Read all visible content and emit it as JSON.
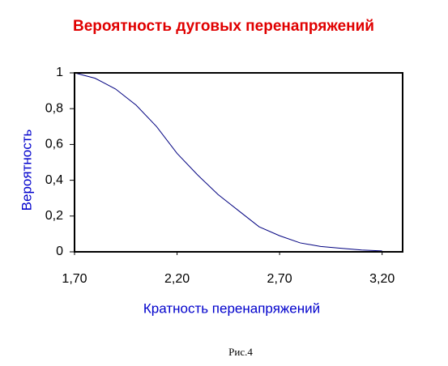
{
  "chart_data": {
    "type": "line",
    "title": "Вероятность дуговых перенапряжений",
    "x_label": "Кратность перенапряжений",
    "y_label": "Вероятность",
    "caption": "Рис.4",
    "x": [
      1.7,
      1.8,
      1.9,
      2.0,
      2.1,
      2.2,
      2.3,
      2.4,
      2.5,
      2.6,
      2.7,
      2.8,
      2.9,
      3.0,
      3.1,
      3.2
    ],
    "series": [
      {
        "name": "Вероятность",
        "color": "#000080",
        "values": [
          1,
          0.97,
          0.91,
          0.82,
          0.7,
          0.55,
          0.43,
          0.32,
          0.23,
          0.14,
          0.09,
          0.05,
          0.03,
          0.02,
          0.01,
          0.005
        ]
      }
    ],
    "xlim": [
      1.7,
      3.3
    ],
    "xticks": [
      {
        "value": 1.7,
        "label": "1,70"
      },
      {
        "value": 2.2,
        "label": "2,20"
      },
      {
        "value": 2.7,
        "label": "2,70"
      },
      {
        "value": 3.2,
        "label": "3,20"
      }
    ],
    "ylim": [
      0,
      1
    ],
    "yticks": [
      0,
      {
        "value": 0.2,
        "label": "0,2"
      },
      {
        "value": 0.4,
        "label": "0,4"
      },
      {
        "value": 0.6,
        "label": "0,6"
      },
      {
        "value": 0.8,
        "label": "0,8"
      },
      1
    ],
    "grid": false
  }
}
